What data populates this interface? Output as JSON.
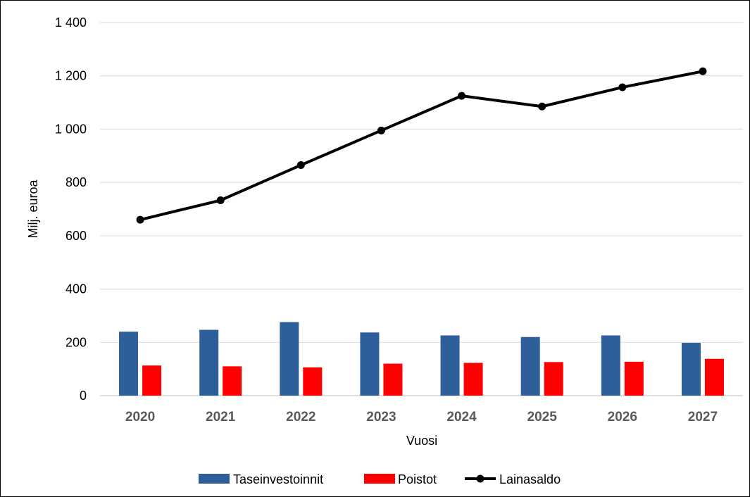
{
  "chart_data": {
    "type": "bar",
    "title": "",
    "xlabel": "Vuosi",
    "ylabel": "Milj. euroa",
    "ylim": [
      0,
      1400
    ],
    "yticks": [
      0,
      200,
      400,
      600,
      800,
      1000,
      1200,
      1400
    ],
    "ytick_labels": [
      "0",
      "200",
      "400",
      "600",
      "800",
      "1 000",
      "1 200",
      "1 400"
    ],
    "categories": [
      "2020",
      "2021",
      "2022",
      "2023",
      "2024",
      "2025",
      "2026",
      "2027"
    ],
    "grid": "horizontal",
    "legend_position": "bottom",
    "series": [
      {
        "name": "Taseinvestoinnit",
        "type": "bar",
        "color": "#2E5F9A",
        "values": [
          240,
          247,
          276,
          237,
          226,
          220,
          226,
          198
        ]
      },
      {
        "name": "Poistot",
        "type": "bar",
        "color": "#FF0000",
        "values": [
          113,
          110,
          106,
          120,
          123,
          126,
          127,
          138
        ]
      },
      {
        "name": "Lainasaldo",
        "type": "line",
        "color": "#000000",
        "marker": "circle",
        "values": [
          660,
          733,
          865,
          995,
          1125,
          1085,
          1157,
          1217
        ]
      }
    ]
  }
}
